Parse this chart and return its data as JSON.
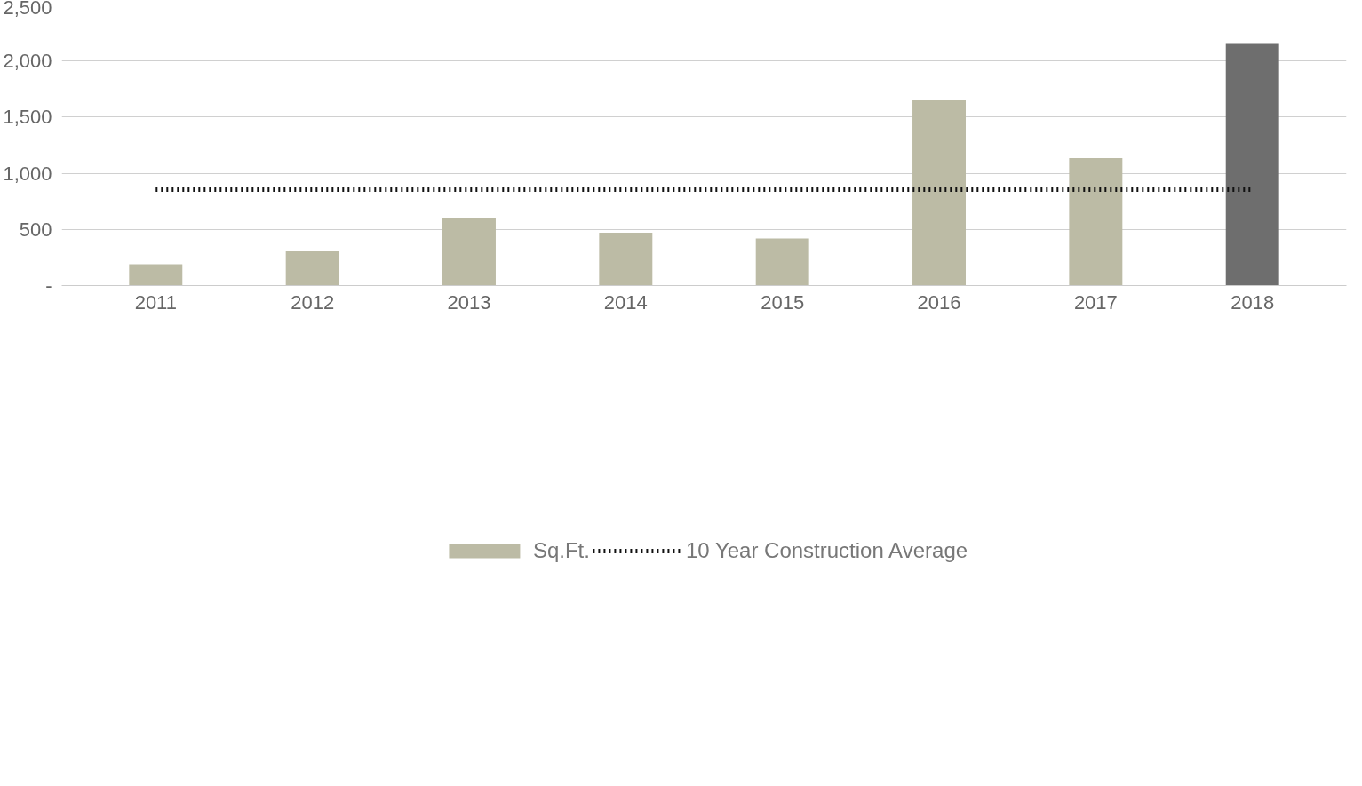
{
  "chart_data": {
    "type": "bar",
    "categories": [
      "2011",
      "2012",
      "2013",
      "2014",
      "2015",
      "2016",
      "2017",
      "2018"
    ],
    "series": [
      {
        "name": "Sq.Ft.",
        "colors": [
          "#bcbba5",
          "#bcbba5",
          "#bcbba5",
          "#bcbba5",
          "#bcbba5",
          "#bcbba5",
          "#bcbba5",
          "#6e6e6e"
        ],
        "values": [
          190,
          305,
          600,
          470,
          420,
          1650,
          1135,
          2160
        ]
      },
      {
        "name": "10 Year Construction Average",
        "type": "line",
        "color": "#111111",
        "line_style": "dotted",
        "values": [
          855,
          855,
          855,
          855,
          855,
          855,
          855,
          855
        ]
      }
    ],
    "ylim": [
      0,
      2500
    ],
    "yticks": [
      {
        "value": 0,
        "label": "-"
      },
      500,
      {
        "value": 1000,
        "label": "1,000"
      },
      {
        "value": 1500,
        "label": "1,500"
      },
      {
        "value": 2000,
        "label": "2,000"
      },
      {
        "value": 2500,
        "label": "2,500"
      }
    ],
    "grid": "y",
    "legend": "bottom"
  }
}
